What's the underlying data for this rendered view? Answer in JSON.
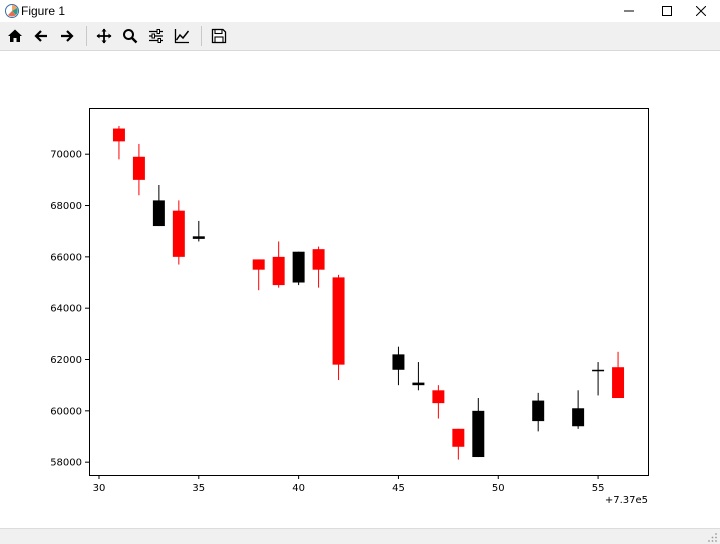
{
  "window": {
    "title": "Figure 1"
  },
  "toolbar": {
    "tools": [
      {
        "name": "home-icon"
      },
      {
        "name": "back-icon"
      },
      {
        "name": "forward-icon"
      },
      {
        "name": "pan-icon"
      },
      {
        "name": "zoom-icon"
      },
      {
        "name": "configure-subplots-icon"
      },
      {
        "name": "edit-axis-icon"
      },
      {
        "name": "save-icon"
      }
    ]
  },
  "chart_data": {
    "type": "candlestick",
    "x_offset_label": "+7.37e5",
    "xlim": [
      29.5,
      57.5
    ],
    "ylim": [
      57500,
      71800
    ],
    "x_ticks": [
      30,
      35,
      40,
      45,
      50,
      55
    ],
    "x_tick_labels": [
      "30",
      "35",
      "40",
      "45",
      "50",
      "55"
    ],
    "y_ticks": [
      58000,
      60000,
      62000,
      64000,
      66000,
      68000,
      70000
    ],
    "y_tick_labels": [
      "58000",
      "60000",
      "62000",
      "64000",
      "66000",
      "68000",
      "70000"
    ],
    "colors": {
      "up": "#000000",
      "down": "#ff0000"
    },
    "candles": [
      {
        "x": 31,
        "open": 71000,
        "high": 71100,
        "low": 69800,
        "close": 70500
      },
      {
        "x": 32,
        "open": 69900,
        "high": 70400,
        "low": 68400,
        "close": 69000
      },
      {
        "x": 33,
        "open": 67200,
        "high": 68800,
        "low": 67200,
        "close": 68200
      },
      {
        "x": 34,
        "open": 67800,
        "high": 68200,
        "low": 65700,
        "close": 66000
      },
      {
        "x": 35,
        "open": 66700,
        "high": 67400,
        "low": 66600,
        "close": 66800
      },
      {
        "x": 38,
        "open": 65900,
        "high": 65900,
        "low": 64700,
        "close": 65500
      },
      {
        "x": 39,
        "open": 66000,
        "high": 66600,
        "low": 64800,
        "close": 64900
      },
      {
        "x": 40,
        "open": 65000,
        "high": 66200,
        "low": 64900,
        "close": 66200
      },
      {
        "x": 41,
        "open": 66300,
        "high": 66400,
        "low": 64800,
        "close": 65500
      },
      {
        "x": 42,
        "open": 65200,
        "high": 65300,
        "low": 61200,
        "close": 61800
      },
      {
        "x": 45,
        "open": 61600,
        "high": 62500,
        "low": 61000,
        "close": 62200
      },
      {
        "x": 46,
        "open": 61000,
        "high": 61900,
        "low": 60800,
        "close": 61100
      },
      {
        "x": 47,
        "open": 60800,
        "high": 61000,
        "low": 59700,
        "close": 60300
      },
      {
        "x": 48,
        "open": 59300,
        "high": 59300,
        "low": 58100,
        "close": 58600
      },
      {
        "x": 49,
        "open": 58200,
        "high": 60500,
        "low": 58200,
        "close": 60000
      },
      {
        "x": 52,
        "open": 59600,
        "high": 60700,
        "low": 59200,
        "close": 60400
      },
      {
        "x": 54,
        "open": 59400,
        "high": 60800,
        "low": 59300,
        "close": 60100
      },
      {
        "x": 55,
        "open": 61600,
        "high": 61900,
        "low": 60600,
        "close": 61600
      },
      {
        "x": 56,
        "open": 61700,
        "high": 62300,
        "low": 60500,
        "close": 60500
      }
    ]
  }
}
